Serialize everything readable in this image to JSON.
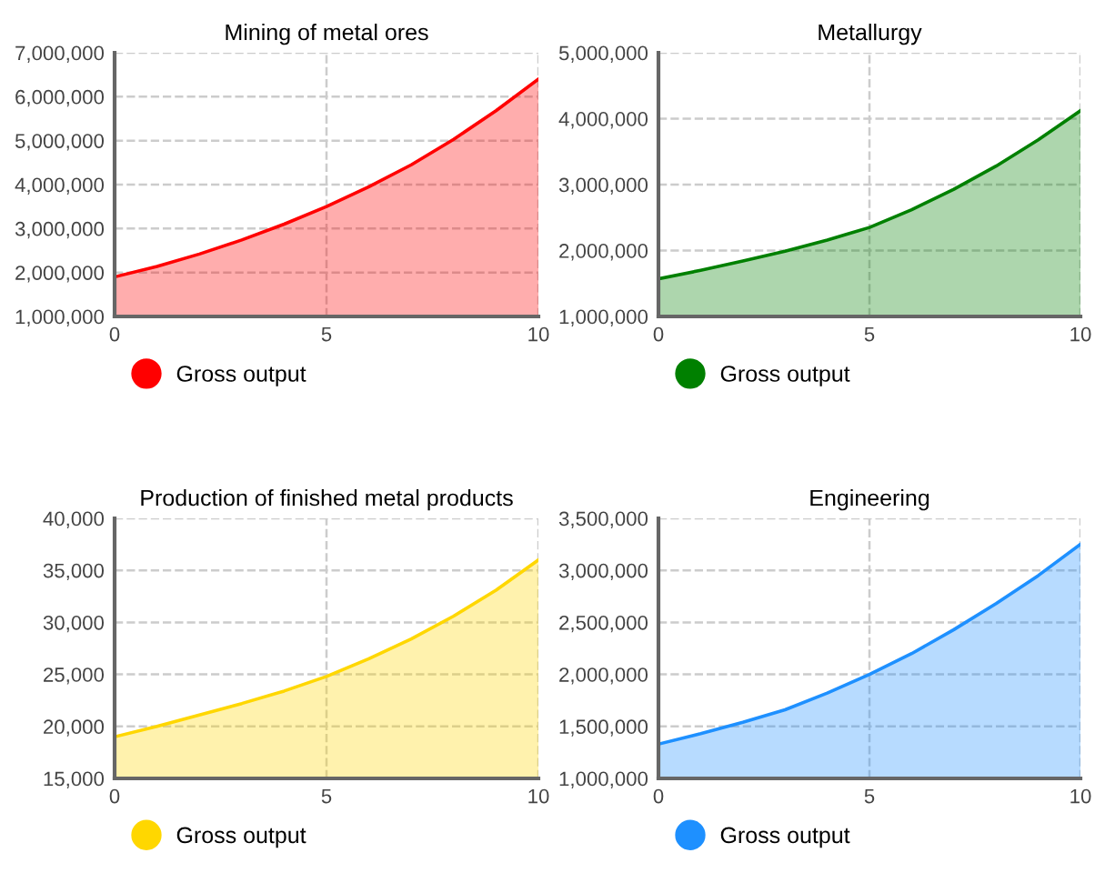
{
  "chart_data": [
    {
      "type": "area",
      "title": "Mining of metal ores",
      "x": [
        0,
        1,
        2,
        3,
        4,
        5,
        6,
        7,
        8,
        9,
        10
      ],
      "xlim": [
        0,
        10
      ],
      "xticks": [
        0,
        5,
        10
      ],
      "ylim": [
        1000000,
        7000000
      ],
      "yticks": [
        {
          "value": 1000000,
          "label": "1,000,000"
        },
        {
          "value": 2000000,
          "label": "2,000,000"
        },
        {
          "value": 3000000,
          "label": "3,000,000"
        },
        {
          "value": 4000000,
          "label": "4,000,000"
        },
        {
          "value": 5000000,
          "label": "5,000,000"
        },
        {
          "value": 6000000,
          "label": "6,000,000"
        },
        {
          "value": 7000000,
          "label": "7,000,000"
        }
      ],
      "grid": true,
      "legend": "bottom",
      "series": [
        {
          "name": "Gross output",
          "color": "#ff0000",
          "values": [
            1900000,
            2140000,
            2420000,
            2740000,
            3100000,
            3500000,
            3950000,
            4450000,
            5030000,
            5680000,
            6400000
          ]
        }
      ]
    },
    {
      "type": "area",
      "title": "Metallurgy",
      "x": [
        0,
        1,
        2,
        3,
        4,
        5,
        6,
        7,
        8,
        9,
        10
      ],
      "xlim": [
        0,
        10
      ],
      "xticks": [
        0,
        5,
        10
      ],
      "ylim": [
        1000000,
        5000000
      ],
      "yticks": [
        {
          "value": 1000000,
          "label": "1,000,000"
        },
        {
          "value": 2000000,
          "label": "2,000,000"
        },
        {
          "value": 3000000,
          "label": "3,000,000"
        },
        {
          "value": 4000000,
          "label": "4,000,000"
        },
        {
          "value": 5000000,
          "label": "5,000,000"
        }
      ],
      "grid": true,
      "legend": "bottom",
      "series": [
        {
          "name": "Gross output",
          "color": "#008000",
          "values": [
            1570000,
            1700000,
            1840000,
            1990000,
            2160000,
            2350000,
            2620000,
            2930000,
            3280000,
            3680000,
            4120000
          ]
        }
      ]
    },
    {
      "type": "area",
      "title": "Production of finished metal products",
      "x": [
        0,
        1,
        2,
        3,
        4,
        5,
        6,
        7,
        8,
        9,
        10
      ],
      "xlim": [
        0,
        10
      ],
      "xticks": [
        0,
        5,
        10
      ],
      "ylim": [
        15000,
        40000
      ],
      "yticks": [
        {
          "value": 15000,
          "label": "15,000"
        },
        {
          "value": 20000,
          "label": "20,000"
        },
        {
          "value": 25000,
          "label": "25,000"
        },
        {
          "value": 30000,
          "label": "30,000"
        },
        {
          "value": 35000,
          "label": "35,000"
        },
        {
          "value": 40000,
          "label": "40,000"
        }
      ],
      "grid": true,
      "legend": "bottom",
      "series": [
        {
          "name": "Gross output",
          "color": "#ffd700",
          "values": [
            19000,
            20000,
            21100,
            22200,
            23400,
            24800,
            26500,
            28400,
            30600,
            33100,
            36000
          ]
        }
      ]
    },
    {
      "type": "area",
      "title": "Engineering",
      "x": [
        0,
        1,
        2,
        3,
        4,
        5,
        6,
        7,
        8,
        9,
        10
      ],
      "xlim": [
        0,
        10
      ],
      "xticks": [
        0,
        5,
        10
      ],
      "ylim": [
        1000000,
        3500000
      ],
      "yticks": [
        {
          "value": 1000000,
          "label": "1,000,000"
        },
        {
          "value": 1500000,
          "label": "1,500,000"
        },
        {
          "value": 2000000,
          "label": "2,000,000"
        },
        {
          "value": 2500000,
          "label": "2,500,000"
        },
        {
          "value": 3000000,
          "label": "3,000,000"
        },
        {
          "value": 3500000,
          "label": "3,500,000"
        }
      ],
      "grid": true,
      "legend": "bottom",
      "series": [
        {
          "name": "Gross output",
          "color": "#1e90ff",
          "values": [
            1330000,
            1430000,
            1540000,
            1660000,
            1820000,
            2000000,
            2200000,
            2430000,
            2680000,
            2950000,
            3250000
          ]
        }
      ]
    }
  ]
}
